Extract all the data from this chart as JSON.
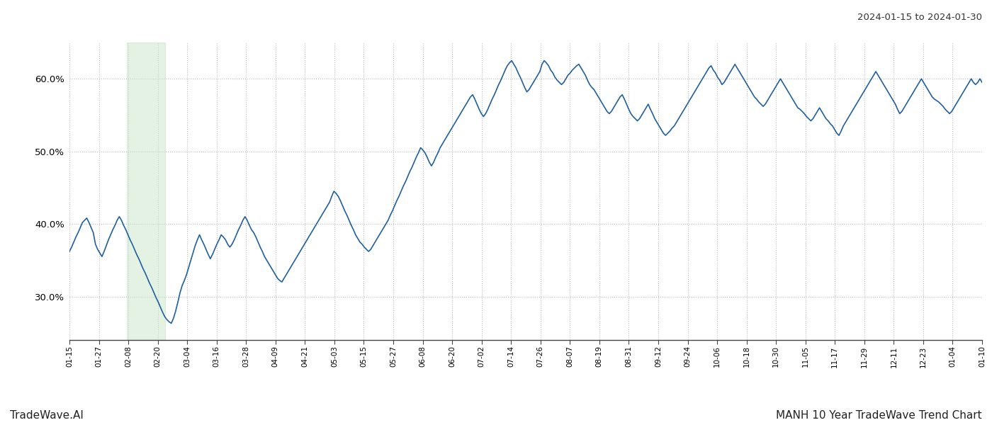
{
  "title_top_right": "2024-01-15 to 2024-01-30",
  "footer_left": "TradeWave.AI",
  "footer_right": "MANH 10 Year TradeWave Trend Chart",
  "line_color": "#2060a0",
  "line_width": 1.2,
  "highlight_color": "#c8e6c9",
  "highlight_alpha": 0.5,
  "background_color": "#ffffff",
  "grid_color": "#bbbbbb",
  "ylim": [
    24.0,
    65.0
  ],
  "yticks": [
    30.0,
    40.0,
    50.0,
    60.0
  ],
  "x_labels": [
    "01-15",
    "01-27",
    "02-08",
    "02-20",
    "03-04",
    "03-16",
    "03-28",
    "04-09",
    "04-21",
    "05-03",
    "05-15",
    "05-27",
    "06-08",
    "06-20",
    "07-02",
    "07-14",
    "07-26",
    "08-07",
    "08-19",
    "08-31",
    "09-12",
    "09-24",
    "10-06",
    "10-18",
    "10-30",
    "11-05",
    "11-17",
    "11-29",
    "12-11",
    "12-23",
    "01-04",
    "01-10"
  ],
  "highlight_xstart": 0.063,
  "highlight_xend": 0.105,
  "y_values": [
    36.2,
    36.8,
    37.5,
    38.2,
    38.8,
    39.5,
    40.2,
    40.5,
    40.8,
    40.2,
    39.5,
    38.8,
    37.2,
    36.5,
    36.0,
    35.5,
    36.2,
    37.0,
    37.8,
    38.5,
    39.2,
    39.8,
    40.5,
    41.0,
    40.5,
    39.8,
    39.2,
    38.5,
    37.8,
    37.2,
    36.5,
    35.8,
    35.2,
    34.5,
    33.8,
    33.2,
    32.5,
    31.8,
    31.2,
    30.5,
    29.8,
    29.2,
    28.5,
    27.8,
    27.2,
    26.8,
    26.5,
    26.3,
    27.0,
    28.0,
    29.2,
    30.5,
    31.5,
    32.2,
    33.0,
    34.0,
    35.0,
    36.0,
    37.0,
    37.8,
    38.5,
    37.8,
    37.2,
    36.5,
    35.8,
    35.2,
    35.8,
    36.5,
    37.2,
    37.8,
    38.5,
    38.2,
    37.8,
    37.2,
    36.8,
    37.2,
    37.8,
    38.5,
    39.2,
    39.8,
    40.5,
    41.0,
    40.5,
    39.8,
    39.2,
    38.8,
    38.2,
    37.5,
    36.8,
    36.2,
    35.5,
    35.0,
    34.5,
    34.0,
    33.5,
    33.0,
    32.5,
    32.2,
    32.0,
    32.5,
    33.0,
    33.5,
    34.0,
    34.5,
    35.0,
    35.5,
    36.0,
    36.5,
    37.0,
    37.5,
    38.0,
    38.5,
    39.0,
    39.5,
    40.0,
    40.5,
    41.0,
    41.5,
    42.0,
    42.5,
    43.0,
    43.8,
    44.5,
    44.2,
    43.8,
    43.2,
    42.5,
    41.8,
    41.2,
    40.5,
    39.8,
    39.2,
    38.5,
    38.0,
    37.5,
    37.2,
    36.8,
    36.5,
    36.2,
    36.5,
    37.0,
    37.5,
    38.0,
    38.5,
    39.0,
    39.5,
    40.0,
    40.5,
    41.2,
    41.8,
    42.5,
    43.2,
    43.8,
    44.5,
    45.2,
    45.8,
    46.5,
    47.2,
    47.8,
    48.5,
    49.2,
    49.8,
    50.5,
    50.2,
    49.8,
    49.2,
    48.5,
    48.0,
    48.5,
    49.2,
    49.8,
    50.5,
    51.0,
    51.5,
    52.0,
    52.5,
    53.0,
    53.5,
    54.0,
    54.5,
    55.0,
    55.5,
    56.0,
    56.5,
    57.0,
    57.5,
    57.8,
    57.2,
    56.5,
    55.8,
    55.2,
    54.8,
    55.2,
    55.8,
    56.5,
    57.2,
    57.8,
    58.5,
    59.2,
    59.8,
    60.5,
    61.2,
    61.8,
    62.2,
    62.5,
    62.0,
    61.5,
    60.8,
    60.2,
    59.5,
    58.8,
    58.2,
    58.5,
    59.0,
    59.5,
    60.0,
    60.5,
    61.0,
    62.0,
    62.5,
    62.2,
    61.8,
    61.2,
    60.8,
    60.2,
    59.8,
    59.5,
    59.2,
    59.5,
    60.0,
    60.5,
    60.8,
    61.2,
    61.5,
    61.8,
    62.0,
    61.5,
    61.0,
    60.5,
    59.8,
    59.2,
    58.8,
    58.5,
    58.0,
    57.5,
    57.0,
    56.5,
    56.0,
    55.5,
    55.2,
    55.5,
    56.0,
    56.5,
    57.0,
    57.5,
    57.8,
    57.2,
    56.5,
    55.8,
    55.2,
    54.8,
    54.5,
    54.2,
    54.5,
    55.0,
    55.5,
    56.0,
    56.5,
    55.8,
    55.2,
    54.5,
    54.0,
    53.5,
    53.0,
    52.5,
    52.2,
    52.5,
    52.8,
    53.2,
    53.5,
    54.0,
    54.5,
    55.0,
    55.5,
    56.0,
    56.5,
    57.0,
    57.5,
    58.0,
    58.5,
    59.0,
    59.5,
    60.0,
    60.5,
    61.0,
    61.5,
    61.8,
    61.2,
    60.8,
    60.2,
    59.8,
    59.2,
    59.5,
    60.0,
    60.5,
    61.0,
    61.5,
    62.0,
    61.5,
    61.0,
    60.5,
    60.0,
    59.5,
    59.0,
    58.5,
    58.0,
    57.5,
    57.2,
    56.8,
    56.5,
    56.2,
    56.5,
    57.0,
    57.5,
    58.0,
    58.5,
    59.0,
    59.5,
    60.0,
    59.5,
    59.0,
    58.5,
    58.0,
    57.5,
    57.0,
    56.5,
    56.0,
    55.8,
    55.5,
    55.2,
    54.8,
    54.5,
    54.2,
    54.5,
    55.0,
    55.5,
    56.0,
    55.5,
    55.0,
    54.5,
    54.2,
    53.8,
    53.5,
    53.0,
    52.5,
    52.2,
    52.8,
    53.5,
    54.0,
    54.5,
    55.0,
    55.5,
    56.0,
    56.5,
    57.0,
    57.5,
    58.0,
    58.5,
    59.0,
    59.5,
    60.0,
    60.5,
    61.0,
    60.5,
    60.0,
    59.5,
    59.0,
    58.5,
    58.0,
    57.5,
    57.0,
    56.5,
    55.8,
    55.2,
    55.5,
    56.0,
    56.5,
    57.0,
    57.5,
    58.0,
    58.5,
    59.0,
    59.5,
    60.0,
    59.5,
    59.0,
    58.5,
    58.0,
    57.5,
    57.2,
    57.0,
    56.8,
    56.5,
    56.2,
    55.8,
    55.5,
    55.2,
    55.5,
    56.0,
    56.5,
    57.0,
    57.5,
    58.0,
    58.5,
    59.0,
    59.5,
    60.0,
    59.5,
    59.2,
    59.5,
    60.0,
    59.5
  ]
}
